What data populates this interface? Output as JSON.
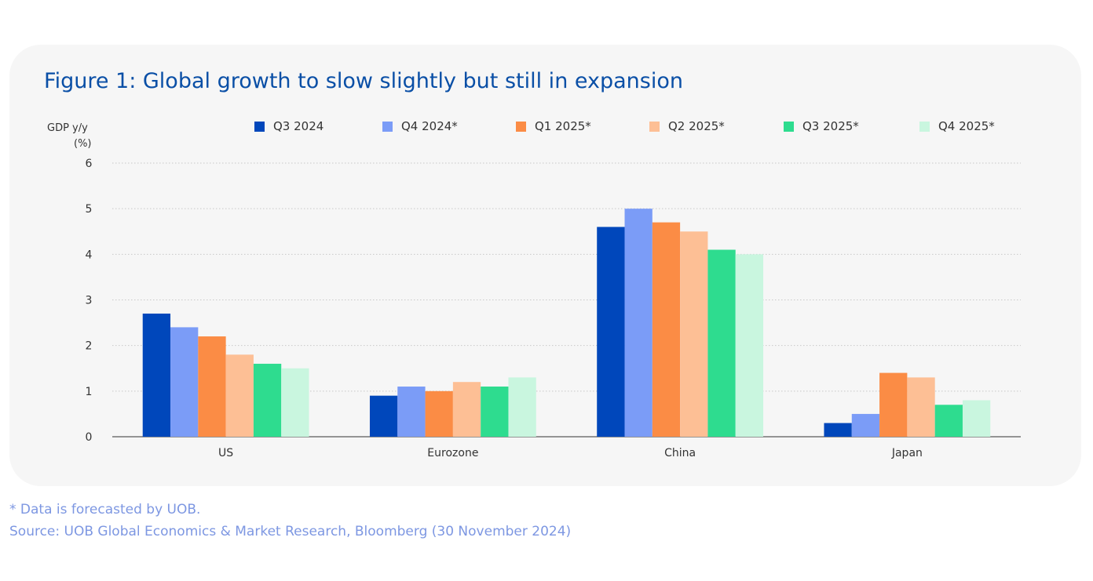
{
  "title": "Figure 1: Global growth to slow slightly but still in expansion",
  "ylabel": {
    "line1": "GDP y/y",
    "line2": "(%)"
  },
  "footnote": "* Data is forecasted by UOB.",
  "source": "Source: UOB Global Economics & Market Research, Bloomberg (30 November 2024)",
  "colors": {
    "card_bg": "#f6f6f6",
    "title": "#0a4fa6",
    "footer_text": "#7d97e2",
    "axis": "#333333",
    "gridline": "#c8c8c8"
  },
  "chart_data": {
    "type": "bar",
    "categories": [
      "US",
      "Eurozone",
      "China",
      "Japan"
    ],
    "ylabel": "GDP y/y (%)",
    "ylim": [
      0,
      6
    ],
    "yticks": [
      "0",
      "1",
      "2",
      "3",
      "4",
      "5",
      "6"
    ],
    "grid": true,
    "legend_position": "top",
    "series": [
      {
        "name": "Q3 2024",
        "color": "#0047bb",
        "values": [
          2.7,
          0.9,
          4.6,
          0.3
        ]
      },
      {
        "name": "Q4 2024*",
        "color": "#7b9cf7",
        "values": [
          2.4,
          1.1,
          5.0,
          0.5
        ]
      },
      {
        "name": "Q1 2025*",
        "color": "#fb8c45",
        "values": [
          2.2,
          1.0,
          4.7,
          1.4
        ]
      },
      {
        "name": "Q2 2025*",
        "color": "#fdbf95",
        "values": [
          1.8,
          1.2,
          4.5,
          1.3
        ]
      },
      {
        "name": "Q3 2025*",
        "color": "#2edc8f",
        "values": [
          1.6,
          1.1,
          4.1,
          0.7
        ]
      },
      {
        "name": "Q4 2025*",
        "color": "#c9f6df",
        "values": [
          1.5,
          1.3,
          4.0,
          0.8
        ]
      }
    ]
  }
}
